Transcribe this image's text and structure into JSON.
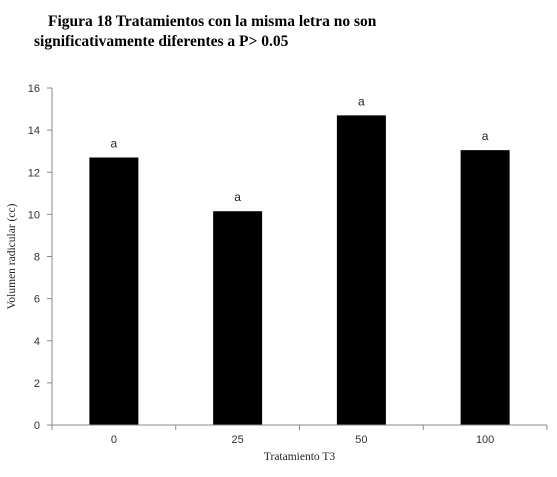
{
  "caption": {
    "line1": "Figura 18 Tratamientos con la misma letra no son",
    "line2": "significativamente diferentes a P> 0.05"
  },
  "chart_data": {
    "type": "bar",
    "categories": [
      "0",
      "25",
      "50",
      "100"
    ],
    "values": [
      12.7,
      10.15,
      14.7,
      13.05
    ],
    "data_labels": [
      "a",
      "a",
      "a",
      "a"
    ],
    "xlabel": "Tratamiento T3",
    "ylabel": "Volumen radicular (cc)",
    "ylim": [
      0,
      16
    ],
    "yticks": [
      0,
      2,
      4,
      6,
      8,
      10,
      12,
      14,
      16
    ],
    "grid": false,
    "bar_color": "#000000"
  }
}
